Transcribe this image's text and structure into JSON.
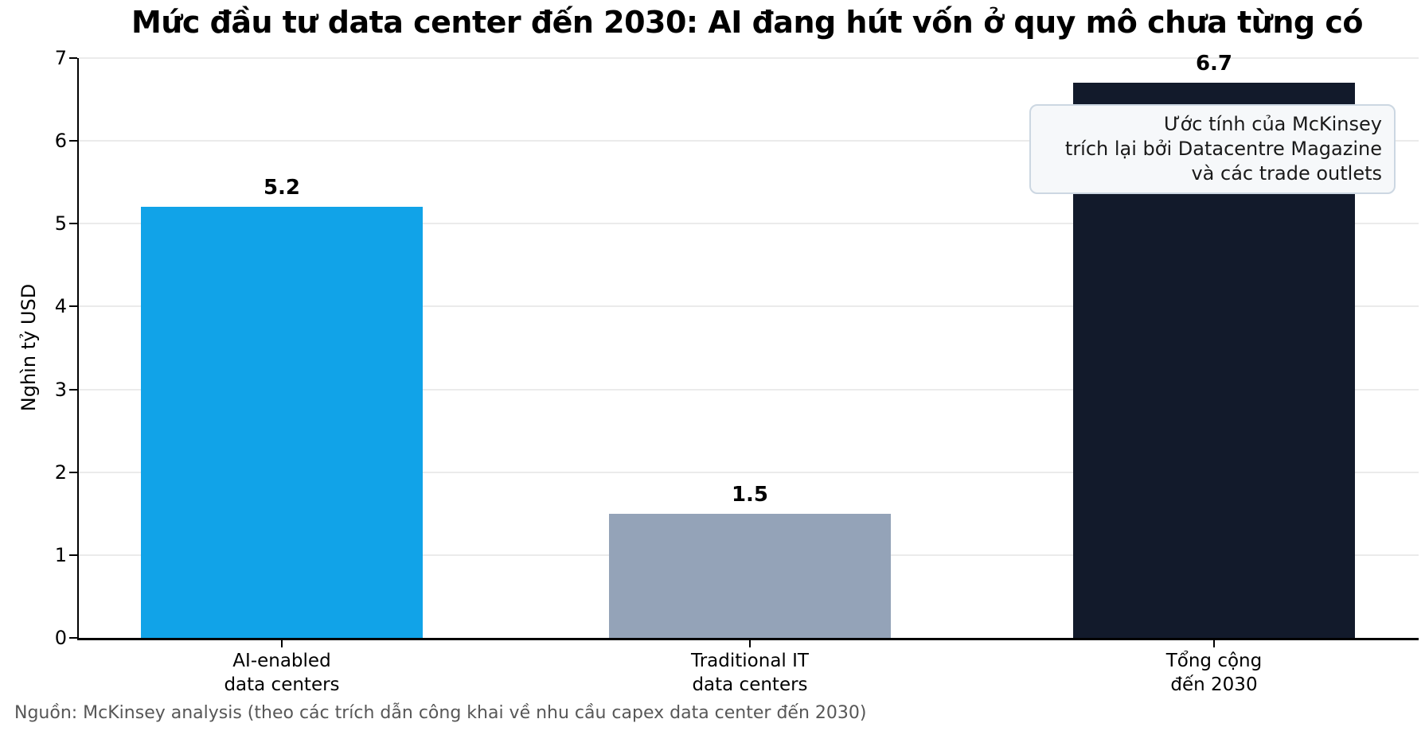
{
  "chart_data": {
    "type": "bar",
    "title": "Mức đầu tư data center đến 2030: AI đang hút vốn ở quy mô chưa từng có",
    "xlabel": "",
    "ylabel": "Nghìn tỷ USD",
    "ylim": [
      0,
      7
    ],
    "yticks": [
      0,
      1,
      2,
      3,
      4,
      5,
      6,
      7
    ],
    "grid": true,
    "legend": "none",
    "categories": [
      "AI-enabled data centers",
      "Traditional IT data centers",
      "Tổng cộng đến 2030"
    ],
    "category_lines": [
      [
        "AI-enabled",
        "data centers"
      ],
      [
        "Traditional IT",
        "data centers"
      ],
      [
        "Tổng cộng",
        "đến 2030"
      ]
    ],
    "values": [
      5.2,
      1.5,
      6.7
    ],
    "value_labels": [
      "5.2",
      "1.5",
      "6.7"
    ],
    "bar_colors": [
      "#11a3e8",
      "#94a3b8",
      "#121a2b"
    ],
    "annotation": {
      "lines": [
        "Ước tính của McKinsey",
        "trích lại bởi Datacentre Magazine",
        "và các trade outlets"
      ]
    }
  },
  "source": "Nguồn: McKinsey analysis (theo các trích dẫn công khai về nhu cầu capex data center đến 2030)"
}
